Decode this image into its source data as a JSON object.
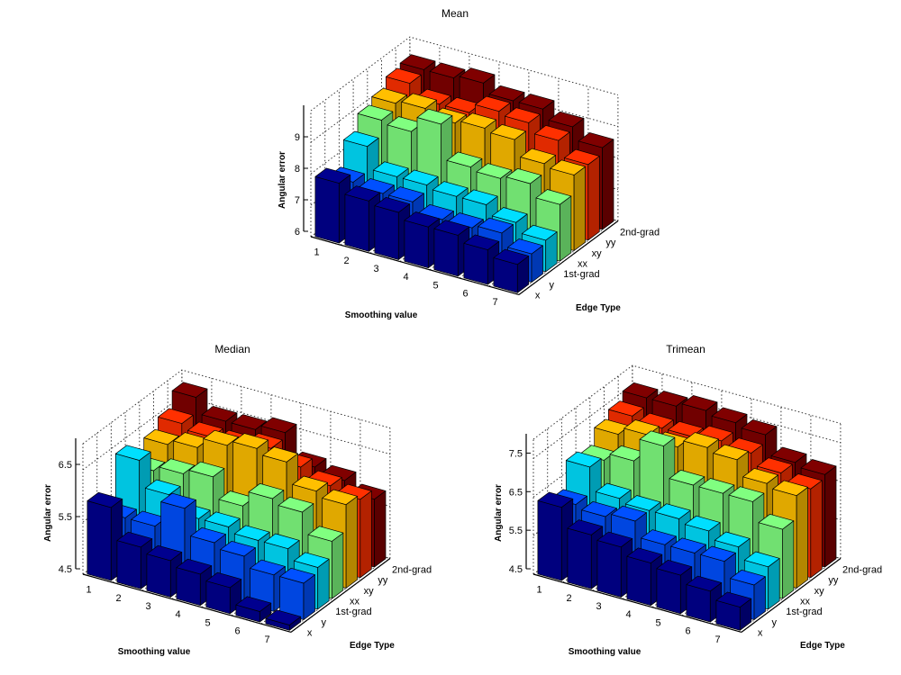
{
  "chart_data": [
    {
      "type": "bar3d",
      "title": "Mean",
      "xlabel": "Smoothing value",
      "ylabel": "Edge Type",
      "zlabel": "Angular error",
      "x_categories": [
        "1",
        "2",
        "3",
        "4",
        "5",
        "6",
        "7"
      ],
      "y_categories": [
        "x",
        "y",
        "1st-grad",
        "xx",
        "xy",
        "yy",
        "2nd-grad"
      ],
      "zlim": [
        6,
        10
      ],
      "zticks": [
        "6",
        "7",
        "8",
        "9"
      ],
      "grid": true,
      "series": [
        {
          "name": "x",
          "color": "#00008f",
          "values": [
            7.9,
            7.6,
            7.5,
            7.3,
            7.3,
            7.1,
            6.9
          ]
        },
        {
          "name": "y",
          "color": "#0050ff",
          "values": [
            7.6,
            7.5,
            7.5,
            7.2,
            7.2,
            7.3,
            6.9
          ]
        },
        {
          "name": "1st-grad",
          "color": "#00dfff",
          "values": [
            8.4,
            7.7,
            7.7,
            7.6,
            7.6,
            7.3,
            7.0
          ]
        },
        {
          "name": "xx",
          "color": "#80ff80",
          "values": [
            8.9,
            8.8,
            9.3,
            8.2,
            8.1,
            8.2,
            7.8
          ]
        },
        {
          "name": "xy",
          "color": "#ffbf00",
          "values": [
            9.1,
            9.2,
            9.0,
            9.1,
            9.0,
            8.5,
            8.4
          ]
        },
        {
          "name": "yy",
          "color": "#ff3000",
          "values": [
            9.4,
            9.0,
            9.0,
            9.3,
            9.2,
            8.9,
            8.4
          ]
        },
        {
          "name": "2nd-grad",
          "color": "#800000",
          "values": [
            9.5,
            9.5,
            9.6,
            9.3,
            9.3,
            9.0,
            8.6
          ]
        }
      ]
    },
    {
      "type": "bar3d",
      "title": "Median",
      "xlabel": "Smoothing value",
      "ylabel": "Edge Type",
      "zlabel": "Angular error",
      "x_categories": [
        "1",
        "2",
        "3",
        "4",
        "5",
        "6",
        "7"
      ],
      "y_categories": [
        "x",
        "y",
        "1st-grad",
        "xx",
        "xy",
        "yy",
        "2nd-grad"
      ],
      "zlim": [
        4.5,
        7
      ],
      "zticks": [
        "4.5",
        "5.5",
        "6.5"
      ],
      "grid": true,
      "series": [
        {
          "name": "x",
          "color": "#00008f",
          "values": [
            5.9,
            5.3,
            5.2,
            5.1,
            5.0,
            4.7,
            4.6
          ]
        },
        {
          "name": "y",
          "color": "#0050ff",
          "values": [
            5.5,
            5.5,
            6.0,
            5.5,
            5.4,
            5.2,
            5.2
          ]
        },
        {
          "name": "1st-grad",
          "color": "#00dfff",
          "values": [
            6.4,
            5.9,
            5.6,
            5.6,
            5.5,
            5.5,
            5.3
          ]
        },
        {
          "name": "xx",
          "color": "#80ff80",
          "values": [
            6.0,
            6.1,
            6.2,
            5.8,
            6.1,
            6.0,
            5.6
          ]
        },
        {
          "name": "xy",
          "color": "#ffbf00",
          "values": [
            6.3,
            6.4,
            6.6,
            6.7,
            6.6,
            6.2,
            6.1
          ]
        },
        {
          "name": "yy",
          "color": "#ff3000",
          "values": [
            6.5,
            6.4,
            6.4,
            6.5,
            6.3,
            6.1,
            6.0
          ]
        },
        {
          "name": "2nd-grad",
          "color": "#800000",
          "values": [
            6.8,
            6.5,
            6.5,
            6.6,
            6.1,
            6.0,
            5.8
          ]
        }
      ]
    },
    {
      "type": "bar3d",
      "title": "Trimean",
      "xlabel": "Smoothing value",
      "ylabel": "Edge Type",
      "zlabel": "Angular error",
      "x_categories": [
        "1",
        "2",
        "3",
        "4",
        "5",
        "6",
        "7"
      ],
      "y_categories": [
        "x",
        "y",
        "1st-grad",
        "xx",
        "xy",
        "yy",
        "2nd-grad"
      ],
      "zlim": [
        4.5,
        8
      ],
      "zticks": [
        "4.5",
        "5.5",
        "6.5",
        "7.5"
      ],
      "grid": true,
      "series": [
        {
          "name": "x",
          "color": "#00008f",
          "values": [
            6.4,
            5.9,
            5.8,
            5.6,
            5.5,
            5.3,
            5.1
          ]
        },
        {
          "name": "y",
          "color": "#0050ff",
          "values": [
            6.2,
            6.1,
            6.2,
            5.8,
            5.8,
            5.8,
            5.4
          ]
        },
        {
          "name": "1st-grad",
          "color": "#00dfff",
          "values": [
            6.9,
            6.3,
            6.2,
            6.2,
            6.1,
            5.9,
            5.6
          ]
        },
        {
          "name": "xx",
          "color": "#80ff80",
          "values": [
            6.8,
            7.0,
            7.6,
            6.8,
            6.8,
            6.8,
            6.3
          ]
        },
        {
          "name": "xy",
          "color": "#ffbf00",
          "values": [
            7.2,
            7.4,
            7.3,
            7.5,
            7.4,
            7.0,
            6.9
          ]
        },
        {
          "name": "yy",
          "color": "#ff3000",
          "values": [
            7.4,
            7.3,
            7.3,
            7.4,
            7.3,
            7.0,
            6.8
          ]
        },
        {
          "name": "2nd-grad",
          "color": "#800000",
          "values": [
            7.6,
            7.6,
            7.7,
            7.6,
            7.5,
            7.0,
            6.9
          ]
        }
      ]
    }
  ]
}
